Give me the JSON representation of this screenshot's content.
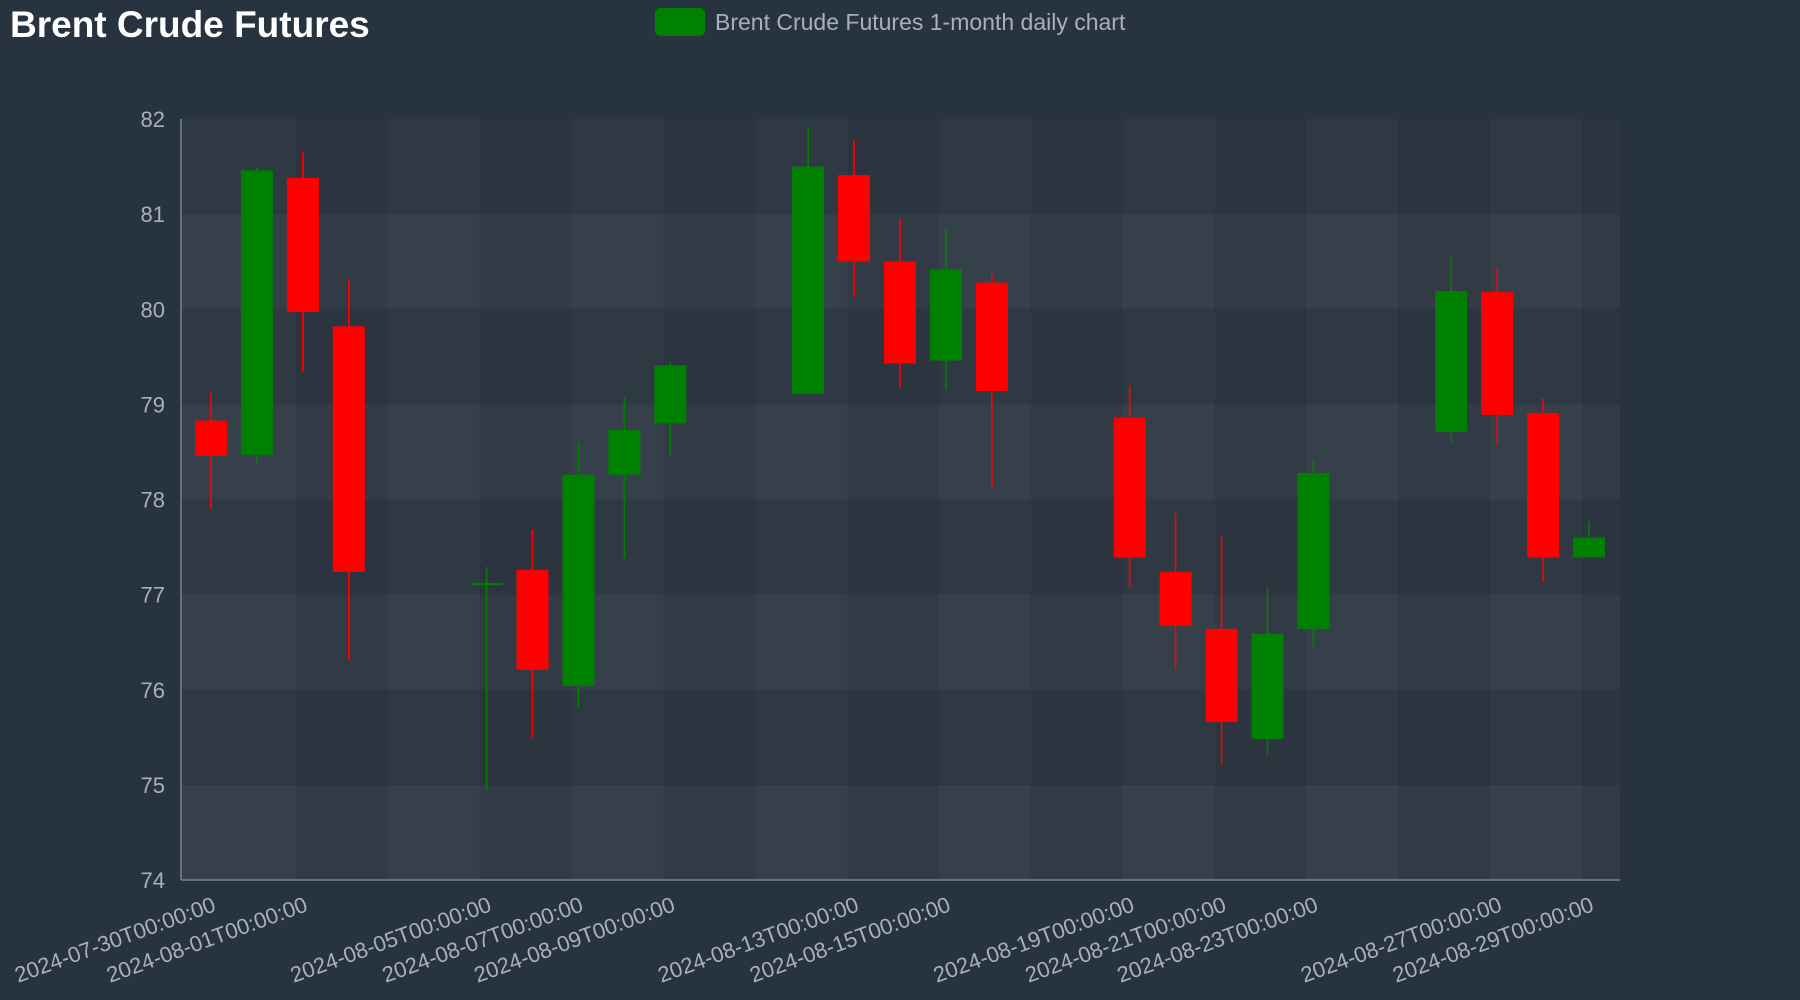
{
  "title": "Brent Crude Futures",
  "legend": {
    "label": "Brent Crude Futures 1-month daily chart",
    "color": "#008000"
  },
  "colors": {
    "up": "#008000",
    "down": "#ff0000",
    "background": "#283340",
    "tick_text": "#a9b0b8"
  },
  "chart_data": {
    "type": "candlestick",
    "title": "Brent Crude Futures",
    "legend": [
      "Brent Crude Futures 1-month daily chart"
    ],
    "legend_position": "top-center",
    "ylim": [
      74,
      82
    ],
    "y_ticks": [
      74,
      75,
      76,
      77,
      78,
      79,
      80,
      81,
      82
    ],
    "x_tick_labels": [
      "2024-07-30T00:00:00",
      "2024-08-01T00:00:00",
      "2024-08-05T00:00:00",
      "2024-08-07T00:00:00",
      "2024-08-09T00:00:00",
      "2024-08-13T00:00:00",
      "2024-08-15T00:00:00",
      "2024-08-19T00:00:00",
      "2024-08-21T00:00:00",
      "2024-08-23T00:00:00",
      "2024-08-27T00:00:00",
      "2024-08-29T00:00:00"
    ],
    "series": [
      {
        "name": "Brent Crude Futures 1-month daily chart",
        "ohlc": [
          {
            "x": "2024-07-30",
            "open": 78.83,
            "high": 79.13,
            "low": 77.9,
            "close": 78.46
          },
          {
            "x": "2024-07-31",
            "open": 78.47,
            "high": 81.49,
            "low": 78.38,
            "close": 81.46
          },
          {
            "x": "2024-08-01",
            "open": 81.38,
            "high": 81.65,
            "low": 79.34,
            "close": 79.97
          },
          {
            "x": "2024-08-02",
            "open": 79.82,
            "high": 80.31,
            "low": 76.31,
            "close": 77.24
          },
          {
            "x": "2024-08-05",
            "open": 77.11,
            "high": 77.29,
            "low": 74.94,
            "close": 77.11
          },
          {
            "x": "2024-08-06",
            "open": 77.26,
            "high": 77.68,
            "low": 75.49,
            "close": 76.21
          },
          {
            "x": "2024-08-07",
            "open": 76.04,
            "high": 78.6,
            "low": 75.82,
            "close": 78.26
          },
          {
            "x": "2024-08-08",
            "open": 78.26,
            "high": 79.07,
            "low": 77.38,
            "close": 78.73
          },
          {
            "x": "2024-08-09",
            "open": 78.8,
            "high": 79.45,
            "low": 78.47,
            "close": 79.41
          },
          {
            "x": "2024-08-12",
            "open": 79.11,
            "high": 81.92,
            "low": 79.11,
            "close": 81.5
          },
          {
            "x": "2024-08-13",
            "open": 81.41,
            "high": 81.78,
            "low": 80.13,
            "close": 80.5
          },
          {
            "x": "2024-08-14",
            "open": 80.5,
            "high": 80.95,
            "low": 79.18,
            "close": 79.43
          },
          {
            "x": "2024-08-15",
            "open": 79.46,
            "high": 80.86,
            "low": 79.15,
            "close": 80.42
          },
          {
            "x": "2024-08-16",
            "open": 80.28,
            "high": 80.38,
            "low": 78.12,
            "close": 79.14
          },
          {
            "x": "2024-08-19",
            "open": 78.86,
            "high": 79.2,
            "low": 77.07,
            "close": 77.39
          },
          {
            "x": "2024-08-20",
            "open": 77.24,
            "high": 77.86,
            "low": 76.21,
            "close": 76.67
          },
          {
            "x": "2024-08-21",
            "open": 76.64,
            "high": 77.61,
            "low": 75.21,
            "close": 75.66
          },
          {
            "x": "2024-08-22",
            "open": 75.48,
            "high": 77.07,
            "low": 75.31,
            "close": 76.59
          },
          {
            "x": "2024-08-23",
            "open": 76.64,
            "high": 78.43,
            "low": 76.45,
            "close": 78.28
          },
          {
            "x": "2024-08-26",
            "open": 78.71,
            "high": 80.55,
            "low": 78.6,
            "close": 80.19
          },
          {
            "x": "2024-08-27",
            "open": 80.18,
            "high": 80.44,
            "low": 78.57,
            "close": 78.89
          },
          {
            "x": "2024-08-28",
            "open": 78.91,
            "high": 79.06,
            "low": 77.13,
            "close": 77.39
          },
          {
            "x": "2024-08-29",
            "open": 77.39,
            "high": 77.77,
            "low": 77.39,
            "close": 77.6
          }
        ]
      }
    ]
  }
}
